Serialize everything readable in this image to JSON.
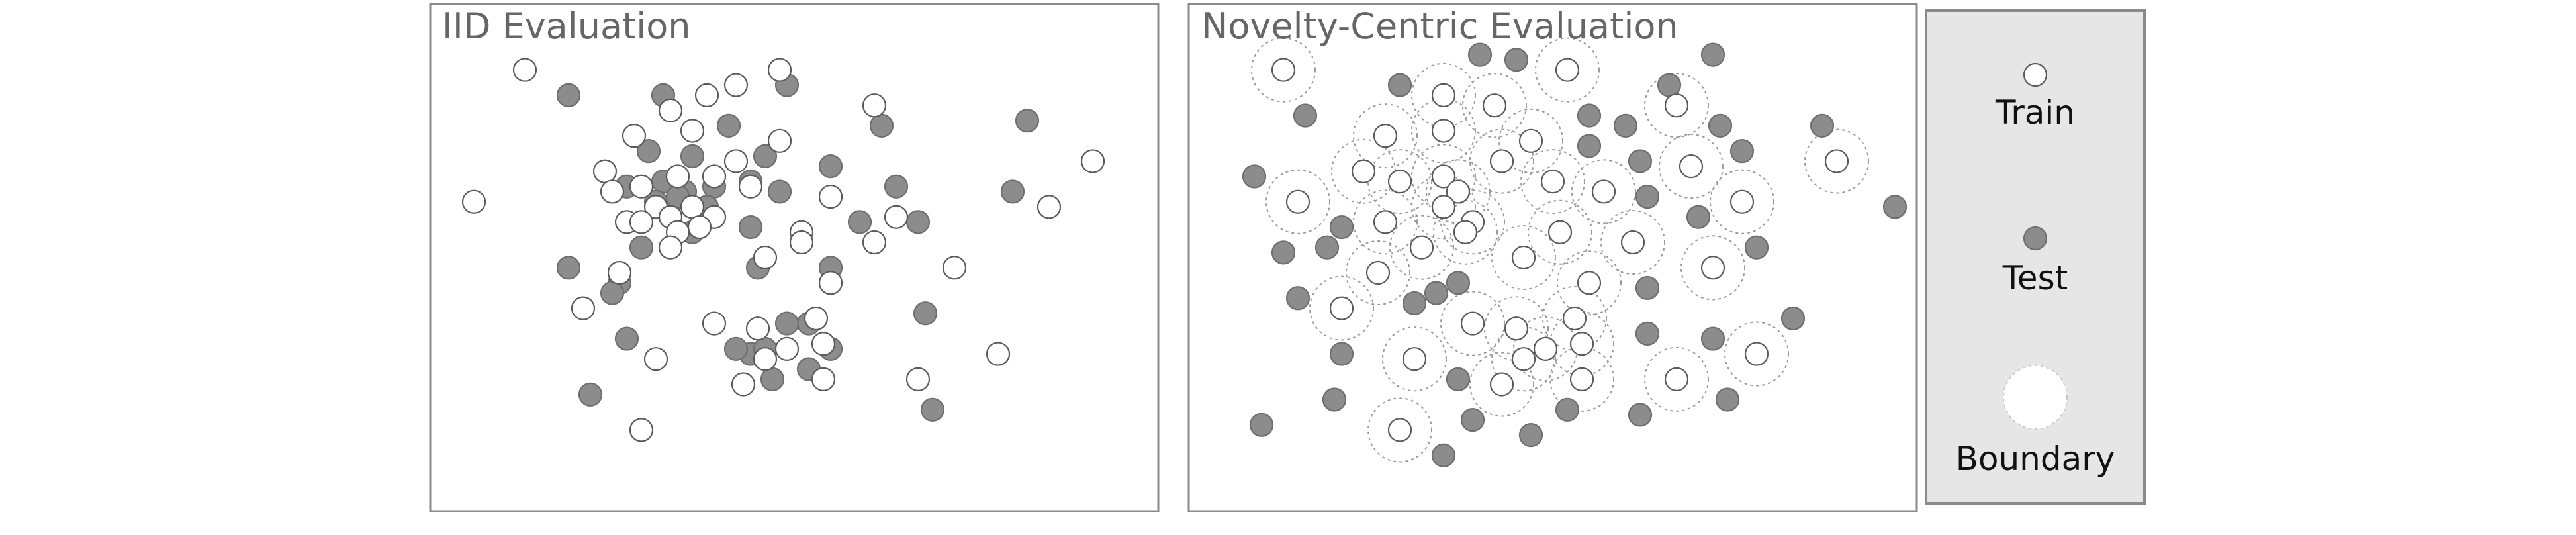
{
  "colors": {
    "frame": "#8a8a8a",
    "title": "#666666",
    "train_fill": "#ffffff",
    "test_fill": "#8c8c8c",
    "legend_bg": "#e6e6e6"
  },
  "panels": [
    {
      "title": "IID Evaluation",
      "show_boundaries": false,
      "train": [
        [
          0.13,
          0.13
        ],
        [
          0.38,
          0.18
        ],
        [
          0.42,
          0.16
        ],
        [
          0.48,
          0.13
        ],
        [
          0.33,
          0.21
        ],
        [
          0.28,
          0.26
        ],
        [
          0.36,
          0.25
        ],
        [
          0.48,
          0.27
        ],
        [
          0.42,
          0.31
        ],
        [
          0.24,
          0.33
        ],
        [
          0.34,
          0.34
        ],
        [
          0.39,
          0.34
        ],
        [
          0.29,
          0.36
        ],
        [
          0.25,
          0.37
        ],
        [
          0.44,
          0.36
        ],
        [
          0.55,
          0.38
        ],
        [
          0.06,
          0.39
        ],
        [
          0.36,
          0.4
        ],
        [
          0.31,
          0.4
        ],
        [
          0.33,
          0.42
        ],
        [
          0.27,
          0.43
        ],
        [
          0.29,
          0.43
        ],
        [
          0.39,
          0.42
        ],
        [
          0.37,
          0.44
        ],
        [
          0.34,
          0.45
        ],
        [
          0.51,
          0.45
        ],
        [
          0.64,
          0.42
        ],
        [
          0.85,
          0.4
        ],
        [
          0.91,
          0.31
        ],
        [
          0.61,
          0.2
        ],
        [
          0.33,
          0.48
        ],
        [
          0.46,
          0.5
        ],
        [
          0.51,
          0.47
        ],
        [
          0.61,
          0.47
        ],
        [
          0.26,
          0.53
        ],
        [
          0.55,
          0.55
        ],
        [
          0.72,
          0.52
        ],
        [
          0.21,
          0.6
        ],
        [
          0.45,
          0.64
        ],
        [
          0.39,
          0.63
        ],
        [
          0.53,
          0.62
        ],
        [
          0.54,
          0.67
        ],
        [
          0.49,
          0.68
        ],
        [
          0.31,
          0.7
        ],
        [
          0.46,
          0.7
        ],
        [
          0.54,
          0.74
        ],
        [
          0.43,
          0.75
        ],
        [
          0.67,
          0.74
        ],
        [
          0.78,
          0.69
        ],
        [
          0.29,
          0.84
        ]
      ],
      "test": [
        [
          0.19,
          0.18
        ],
        [
          0.32,
          0.18
        ],
        [
          0.49,
          0.16
        ],
        [
          0.62,
          0.24
        ],
        [
          0.82,
          0.23
        ],
        [
          0.41,
          0.24
        ],
        [
          0.3,
          0.29
        ],
        [
          0.36,
          0.3
        ],
        [
          0.46,
          0.3
        ],
        [
          0.55,
          0.32
        ],
        [
          0.27,
          0.36
        ],
        [
          0.32,
          0.35
        ],
        [
          0.35,
          0.37
        ],
        [
          0.39,
          0.36
        ],
        [
          0.44,
          0.35
        ],
        [
          0.48,
          0.37
        ],
        [
          0.31,
          0.39
        ],
        [
          0.34,
          0.38
        ],
        [
          0.38,
          0.4
        ],
        [
          0.64,
          0.36
        ],
        [
          0.8,
          0.37
        ],
        [
          0.59,
          0.43
        ],
        [
          0.67,
          0.43
        ],
        [
          0.44,
          0.44
        ],
        [
          0.29,
          0.48
        ],
        [
          0.36,
          0.45
        ],
        [
          0.19,
          0.52
        ],
        [
          0.45,
          0.52
        ],
        [
          0.55,
          0.52
        ],
        [
          0.26,
          0.55
        ],
        [
          0.25,
          0.57
        ],
        [
          0.68,
          0.61
        ],
        [
          0.27,
          0.66
        ],
        [
          0.44,
          0.69
        ],
        [
          0.52,
          0.63
        ],
        [
          0.49,
          0.63
        ],
        [
          0.55,
          0.68
        ],
        [
          0.46,
          0.68
        ],
        [
          0.42,
          0.68
        ],
        [
          0.52,
          0.72
        ],
        [
          0.47,
          0.74
        ],
        [
          0.22,
          0.77
        ],
        [
          0.69,
          0.8
        ]
      ]
    },
    {
      "title": "Novelty-Centric Evaluation",
      "show_boundaries": true,
      "train": [
        [
          0.13,
          0.13
        ],
        [
          0.52,
          0.13
        ],
        [
          0.35,
          0.18
        ],
        [
          0.42,
          0.2
        ],
        [
          0.27,
          0.26
        ],
        [
          0.35,
          0.25
        ],
        [
          0.47,
          0.27
        ],
        [
          0.67,
          0.2
        ],
        [
          0.24,
          0.33
        ],
        [
          0.29,
          0.35
        ],
        [
          0.35,
          0.34
        ],
        [
          0.43,
          0.31
        ],
        [
          0.37,
          0.37
        ],
        [
          0.5,
          0.35
        ],
        [
          0.57,
          0.37
        ],
        [
          0.69,
          0.32
        ],
        [
          0.15,
          0.39
        ],
        [
          0.27,
          0.43
        ],
        [
          0.35,
          0.4
        ],
        [
          0.39,
          0.43
        ],
        [
          0.38,
          0.45
        ],
        [
          0.51,
          0.45
        ],
        [
          0.61,
          0.47
        ],
        [
          0.76,
          0.39
        ],
        [
          0.89,
          0.31
        ],
        [
          0.32,
          0.48
        ],
        [
          0.46,
          0.5
        ],
        [
          0.26,
          0.53
        ],
        [
          0.55,
          0.55
        ],
        [
          0.72,
          0.52
        ],
        [
          0.21,
          0.6
        ],
        [
          0.45,
          0.64
        ],
        [
          0.39,
          0.63
        ],
        [
          0.53,
          0.62
        ],
        [
          0.54,
          0.67
        ],
        [
          0.49,
          0.68
        ],
        [
          0.31,
          0.7
        ],
        [
          0.46,
          0.7
        ],
        [
          0.54,
          0.74
        ],
        [
          0.43,
          0.75
        ],
        [
          0.67,
          0.74
        ],
        [
          0.78,
          0.69
        ],
        [
          0.29,
          0.84
        ]
      ],
      "test": [
        [
          0.4,
          0.1
        ],
        [
          0.45,
          0.11
        ],
        [
          0.66,
          0.16
        ],
        [
          0.72,
          0.1
        ],
        [
          0.29,
          0.16
        ],
        [
          0.16,
          0.22
        ],
        [
          0.55,
          0.22
        ],
        [
          0.6,
          0.24
        ],
        [
          0.73,
          0.24
        ],
        [
          0.76,
          0.29
        ],
        [
          0.87,
          0.24
        ],
        [
          0.09,
          0.34
        ],
        [
          0.62,
          0.31
        ],
        [
          0.55,
          0.28
        ],
        [
          0.21,
          0.44
        ],
        [
          0.19,
          0.48
        ],
        [
          0.13,
          0.49
        ],
        [
          0.63,
          0.38
        ],
        [
          0.7,
          0.42
        ],
        [
          0.78,
          0.48
        ],
        [
          0.97,
          0.4
        ],
        [
          0.15,
          0.58
        ],
        [
          0.31,
          0.59
        ],
        [
          0.34,
          0.57
        ],
        [
          0.37,
          0.55
        ],
        [
          0.63,
          0.56
        ],
        [
          0.21,
          0.69
        ],
        [
          0.37,
          0.74
        ],
        [
          0.63,
          0.65
        ],
        [
          0.72,
          0.66
        ],
        [
          0.2,
          0.78
        ],
        [
          0.74,
          0.78
        ],
        [
          0.52,
          0.8
        ],
        [
          0.39,
          0.82
        ],
        [
          0.62,
          0.81
        ],
        [
          0.83,
          0.62
        ],
        [
          0.47,
          0.85
        ],
        [
          0.1,
          0.83
        ],
        [
          0.35,
          0.89
        ]
      ]
    }
  ],
  "legend": {
    "train_label": "Train",
    "test_label": "Test",
    "boundary_label": "Boundary"
  }
}
